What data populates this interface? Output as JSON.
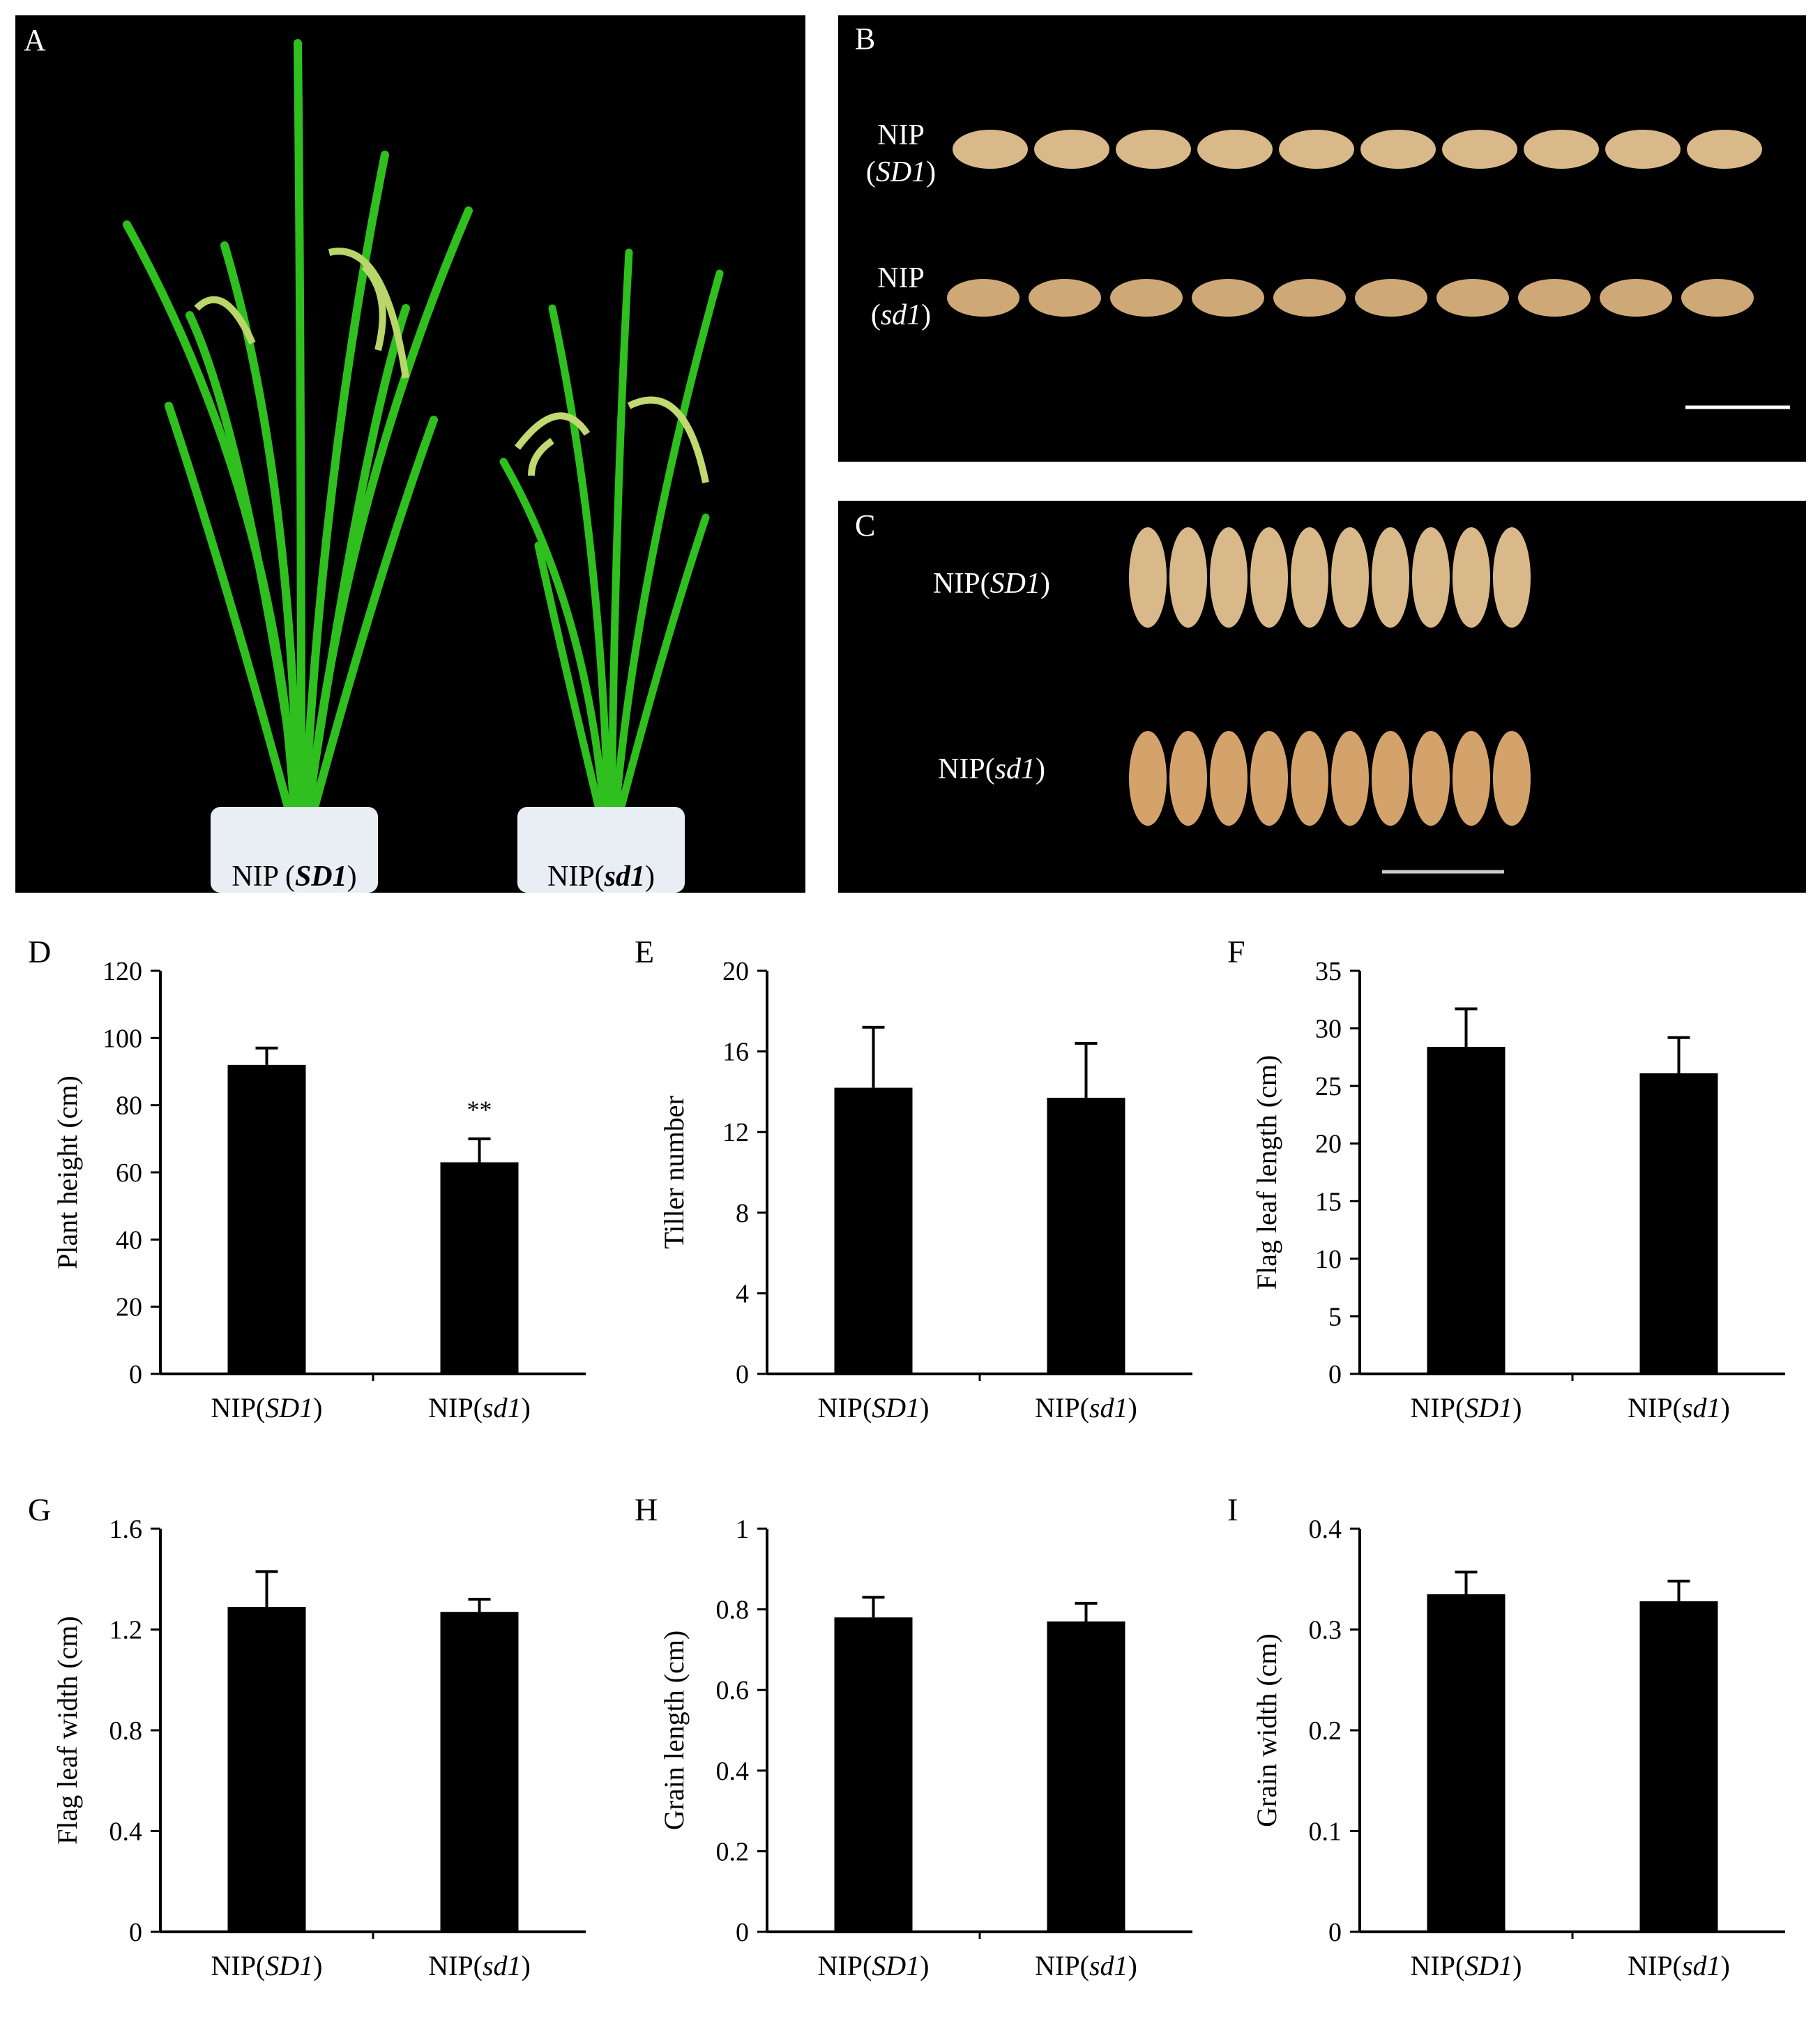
{
  "panels": {
    "A": {
      "letter": "A",
      "labels": [
        "NIP (",
        "SD1",
        ")",
        "NIP(",
        "sd1",
        ")"
      ]
    },
    "B": {
      "letter": "B",
      "row1": [
        "NIP",
        "(",
        "SD1",
        ")"
      ],
      "row2": [
        "NIP",
        "(",
        "sd1",
        ")"
      ]
    },
    "C": {
      "letter": "C",
      "row1": [
        "NIP(",
        "SD1",
        ")"
      ],
      "row2": [
        "NIP(",
        "sd1",
        ")"
      ]
    }
  },
  "colors": {
    "bar": "#000000",
    "background_photo": "#000000",
    "leaf": "#2fbf1f",
    "pot": "#e8eef4",
    "grain": "#d9b98a"
  },
  "chart_data": [
    {
      "panel": "D",
      "type": "bar",
      "categories": [
        [
          "NIP(",
          "SD1",
          ")"
        ],
        [
          "NIP(",
          "sd1",
          ")"
        ]
      ],
      "values": [
        92,
        63
      ],
      "errors": [
        5,
        7
      ],
      "ylabel": "Plant height (cm)",
      "ylim": [
        0,
        120
      ],
      "ticks": [
        "0",
        "20",
        "40",
        "60",
        "80",
        "100",
        "120"
      ],
      "annotations": [
        "",
        "**"
      ]
    },
    {
      "panel": "E",
      "type": "bar",
      "categories": [
        [
          "NIP(",
          "SD1",
          ")"
        ],
        [
          "NIP(",
          "sd1",
          ")"
        ]
      ],
      "values": [
        14.2,
        13.7
      ],
      "errors": [
        3.0,
        2.7
      ],
      "ylabel": "Tiller number",
      "ylim": [
        0,
        20
      ],
      "ticks": [
        "0",
        "4",
        "8",
        "12",
        "16",
        "20"
      ],
      "annotations": [
        "",
        ""
      ]
    },
    {
      "panel": "F",
      "type": "bar",
      "categories": [
        [
          "NIP(",
          "SD1",
          ")"
        ],
        [
          "NIP(",
          "sd1",
          ")"
        ]
      ],
      "values": [
        28.4,
        26.1
      ],
      "errors": [
        3.3,
        3.1
      ],
      "ylabel": "Flag leaf length (cm)",
      "ylim": [
        0,
        35
      ],
      "ticks": [
        "0",
        "5",
        "10",
        "15",
        "20",
        "25",
        "30",
        "35"
      ],
      "annotations": [
        "",
        ""
      ]
    },
    {
      "panel": "G",
      "type": "bar",
      "categories": [
        [
          "NIP(",
          "SD1",
          ")"
        ],
        [
          "NIP(",
          "sd1",
          ")"
        ]
      ],
      "values": [
        1.29,
        1.27
      ],
      "errors": [
        0.14,
        0.05
      ],
      "ylabel": "Flag leaf width (cm)",
      "ylim": [
        0,
        1.6
      ],
      "ticks": [
        "0",
        "0.4",
        "0.8",
        "1.2",
        "1.6"
      ],
      "annotations": [
        "",
        ""
      ]
    },
    {
      "panel": "H",
      "type": "bar",
      "categories": [
        [
          "NIP(",
          "SD1",
          ")"
        ],
        [
          "NIP(",
          "sd1",
          ")"
        ]
      ],
      "values": [
        0.78,
        0.77
      ],
      "errors": [
        0.05,
        0.045
      ],
      "ylabel": "Grain length (cm)",
      "ylim": [
        0,
        1
      ],
      "ticks": [
        "0",
        "0.2",
        "0.4",
        "0.6",
        "0.8",
        "1"
      ],
      "annotations": [
        "",
        ""
      ]
    },
    {
      "panel": "I",
      "type": "bar",
      "categories": [
        [
          "NIP(",
          "SD1",
          ")"
        ],
        [
          "NIP(",
          "sd1",
          ")"
        ]
      ],
      "values": [
        0.335,
        0.328
      ],
      "errors": [
        0.022,
        0.02
      ],
      "ylabel": "Grain width (cm)",
      "ylim": [
        0,
        0.4
      ],
      "ticks": [
        "0",
        "0.1",
        "0.2",
        "0.3",
        "0.4"
      ],
      "annotations": [
        "",
        ""
      ]
    }
  ]
}
